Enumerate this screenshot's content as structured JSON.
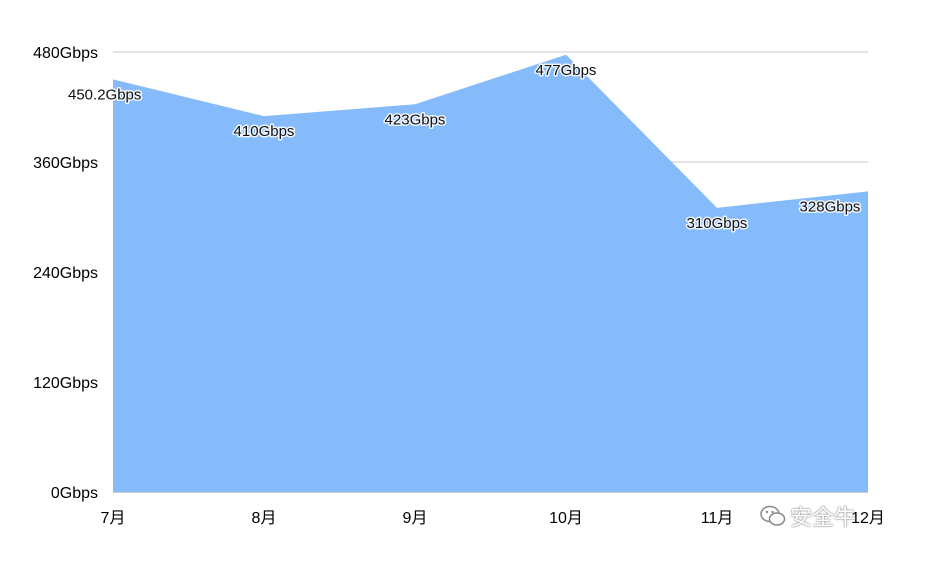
{
  "chart_data": {
    "type": "area",
    "categories": [
      "7月",
      "8月",
      "9月",
      "10月",
      "11月",
      "12月"
    ],
    "values": [
      450.2,
      410,
      423,
      477,
      310,
      328
    ],
    "data_labels": [
      "450.2Gbps",
      "410Gbps",
      "423Gbps",
      "477Gbps",
      "310Gbps",
      "328Gbps"
    ],
    "y_ticks": [
      0,
      120,
      240,
      360,
      480
    ],
    "y_tick_labels": [
      "0Gbps",
      "120Gbps",
      "240Gbps",
      "360Gbps",
      "480Gbps"
    ],
    "ylim": [
      0,
      480
    ],
    "grid": true,
    "fill_color": "#86bbfb",
    "grid_color": "#c8c8c8"
  },
  "watermark": {
    "icon": "wechat-icon",
    "text": "安全牛"
  }
}
